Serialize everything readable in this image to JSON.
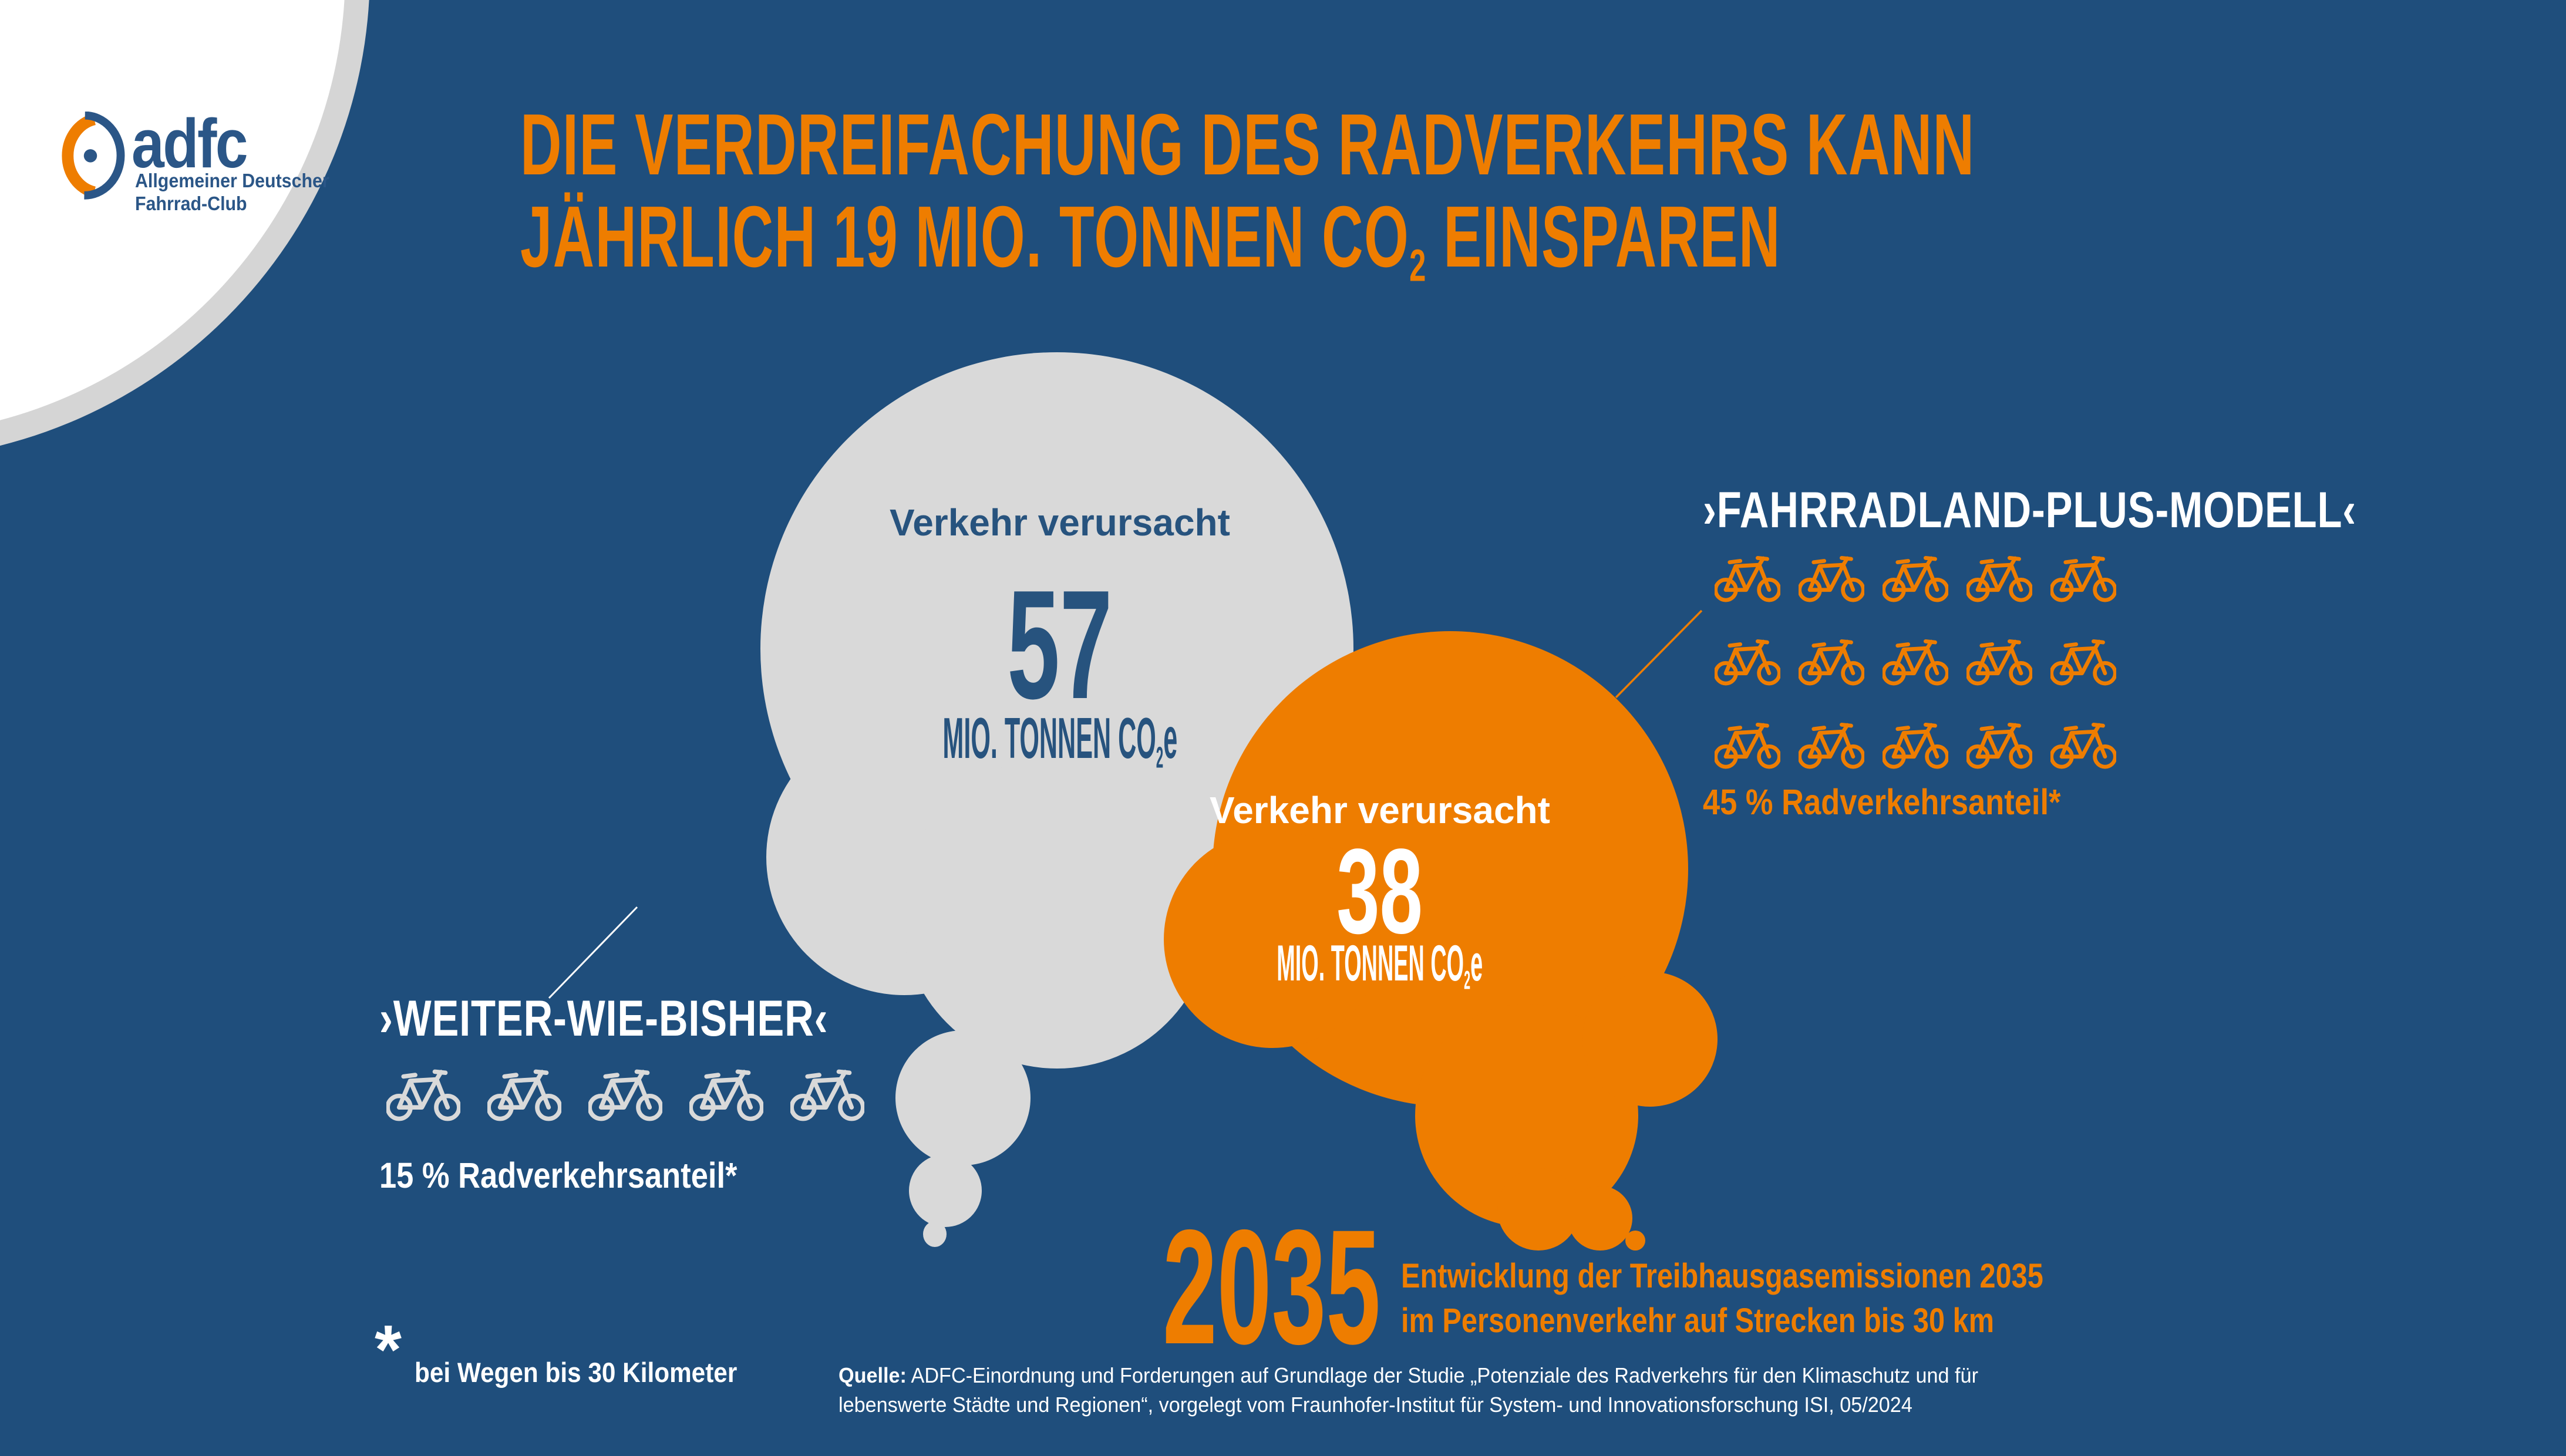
{
  "colors": {
    "background": "#1F4E7C",
    "orange": "#EE7D00",
    "cloud_gray": "#D9D9D9",
    "logo_blue": "#2B5687",
    "cloud_text_blue": "#27537E",
    "white": "#FFFFFF"
  },
  "logo": {
    "brand": "adfc",
    "subtitle_line1": "Allgemeiner Deutscher",
    "subtitle_line2": "Fahrrad-Club"
  },
  "title": {
    "line1": "DIE VERDREIFACHUNG DES RADVERKEHRS KANN",
    "line2_pre": "JÄHRLICH 19 MIO. TONNEN CO",
    "line2_sub": "2",
    "line2_post": " EINSPAREN"
  },
  "gray_cloud": {
    "intro": "Verkehr verursacht",
    "value": "57",
    "unit_pre": "MIO. TONNEN CO",
    "unit_sub": "2",
    "unit_post": "e"
  },
  "orange_cloud": {
    "intro": "Verkehr verursacht",
    "value": "38",
    "unit_pre": "MIO. TONNEN CO",
    "unit_sub": "2",
    "unit_post": "e"
  },
  "scenario_right": {
    "label": "›FAHRRADLAND-PLUS-MODELL‹",
    "bikes_rows": 3,
    "bikes_per_row": 5,
    "share": "45 % Radverkehrsanteil*"
  },
  "scenario_left": {
    "label": "›WEITER-WIE-BISHER‹",
    "bikes_rows": 1,
    "bikes_per_row": 5,
    "share": "15 % Radverkehrsanteil*"
  },
  "year_block": {
    "year": "2035",
    "desc_line1": "Entwicklung der Treibhausgasemissionen 2035",
    "desc_line2": "im Personenverkehr auf Strecken bis 30 km"
  },
  "footnote": {
    "asterisk": "*",
    "text": "bei Wegen bis 30 Kilometer"
  },
  "source": {
    "label": "Quelle:",
    "line1": " ADFC-Einordnung und Forderungen auf Grundlage der Studie „Potenziale des Radverkehrs für den Klimaschutz und für",
    "line2": "lebenswerte Städte und Regionen“, vorgelegt vom Fraunhofer-Institut für System- und Innovationsforschung ISI, 05/2024"
  },
  "icons": {
    "bicycle": "bicycle-icon",
    "logo_wheel": "adfc-wheel-logo-icon"
  },
  "chart_data": {
    "type": "bar",
    "style": "infographic thought-bubble pictogram comparison",
    "title": "Die Verdreifachung des Radverkehrs kann jährlich 19 Mio. Tonnen CO2 einsparen",
    "subtitle": "Entwicklung der Treibhausgasemissionen 2035 im Personenverkehr auf Strecken bis 30 km",
    "year": 2035,
    "categories": [
      "Weiter-wie-bisher",
      "Fahrradland-Plus-Modell"
    ],
    "values": [
      57,
      38
    ],
    "unit": "Mio. Tonnen CO2e",
    "savings": 19,
    "savings_unit": "Mio. Tonnen CO2 pro Jahr",
    "series_annotations": [
      {
        "scenario": "Weiter-wie-bisher",
        "bike_share_percent": 15,
        "bike_icons": 5,
        "note": "bei Wegen bis 30 Kilometer"
      },
      {
        "scenario": "Fahrradland-Plus-Modell",
        "bike_share_percent": 45,
        "bike_icons": 15,
        "note": "bei Wegen bis 30 Kilometer"
      }
    ],
    "source": "ADFC-Einordnung und Forderungen auf Grundlage der Studie „Potenziale des Radverkehrs für den Klimaschutz und für lebenswerte Städte und Regionen“, vorgelegt vom Fraunhofer-Institut für System- und Innovationsforschung ISI, 05/2024"
  }
}
